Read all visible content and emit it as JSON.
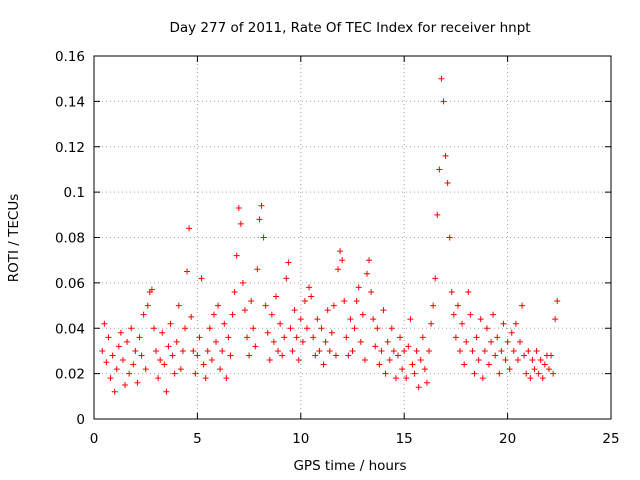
{
  "chart_data": {
    "type": "scatter",
    "title": "Day 277 of 2011, Rate Of TEC Index for receiver hnpt",
    "xlabel": "GPS time / hours",
    "ylabel": "ROTI / TECUs",
    "xlim": [
      0,
      25
    ],
    "ylim": [
      0,
      0.16
    ],
    "xticks": [
      "0",
      "5",
      "10",
      "15",
      "20",
      "25"
    ],
    "yticks": [
      "0",
      "0.02",
      "0.04",
      "0.06",
      "0.08",
      "0.1",
      "0.12",
      "0.14",
      "0.16"
    ],
    "grid": true,
    "marker": "plus",
    "color": "#ff0000",
    "series": [
      {
        "points": [
          [
            0.4,
            0.03
          ],
          [
            0.5,
            0.042
          ],
          [
            0.6,
            0.025
          ],
          [
            0.7,
            0.036
          ],
          [
            0.8,
            0.018
          ],
          [
            0.9,
            0.028
          ],
          [
            1.0,
            0.012
          ],
          [
            1.1,
            0.022
          ],
          [
            1.2,
            0.032
          ],
          [
            1.3,
            0.038
          ],
          [
            1.4,
            0.026
          ],
          [
            1.5,
            0.015
          ],
          [
            1.6,
            0.034
          ],
          [
            1.7,
            0.02
          ],
          [
            1.8,
            0.04
          ],
          [
            1.9,
            0.024
          ],
          [
            2.0,
            0.03
          ],
          [
            2.1,
            0.016
          ],
          [
            2.2,
            0.036
          ],
          [
            2.3,
            0.028
          ],
          [
            2.4,
            0.046
          ],
          [
            2.5,
            0.022
          ],
          [
            2.6,
            0.05
          ],
          [
            2.7,
            0.056
          ],
          [
            2.8,
            0.057
          ],
          [
            2.9,
            0.04
          ],
          [
            3.0,
            0.03
          ],
          [
            3.1,
            0.018
          ],
          [
            3.2,
            0.026
          ],
          [
            3.3,
            0.038
          ],
          [
            3.4,
            0.024
          ],
          [
            3.5,
            0.012
          ],
          [
            3.6,
            0.032
          ],
          [
            3.7,
            0.042
          ],
          [
            3.8,
            0.028
          ],
          [
            3.9,
            0.02
          ],
          [
            4.0,
            0.034
          ],
          [
            4.1,
            0.05
          ],
          [
            4.2,
            0.022
          ],
          [
            4.3,
            0.03
          ],
          [
            4.4,
            0.04
          ],
          [
            4.5,
            0.065
          ],
          [
            4.6,
            0.084
          ],
          [
            4.7,
            0.045
          ],
          [
            4.8,
            0.03
          ],
          [
            4.9,
            0.02
          ],
          [
            5.0,
            0.028
          ],
          [
            5.1,
            0.036
          ],
          [
            5.2,
            0.062
          ],
          [
            5.3,
            0.024
          ],
          [
            5.4,
            0.018
          ],
          [
            5.5,
            0.03
          ],
          [
            5.6,
            0.04
          ],
          [
            5.7,
            0.026
          ],
          [
            5.8,
            0.046
          ],
          [
            5.9,
            0.034
          ],
          [
            6.0,
            0.05
          ],
          [
            6.1,
            0.022
          ],
          [
            6.2,
            0.03
          ],
          [
            6.3,
            0.042
          ],
          [
            6.4,
            0.018
          ],
          [
            6.5,
            0.036
          ],
          [
            6.6,
            0.028
          ],
          [
            6.7,
            0.046
          ],
          [
            6.8,
            0.056
          ],
          [
            6.9,
            0.072
          ],
          [
            7.0,
            0.093
          ],
          [
            7.1,
            0.086
          ],
          [
            7.2,
            0.06
          ],
          [
            7.3,
            0.048
          ],
          [
            7.4,
            0.036
          ],
          [
            7.5,
            0.028
          ],
          [
            7.6,
            0.052
          ],
          [
            7.7,
            0.04
          ],
          [
            7.8,
            0.032
          ],
          [
            7.9,
            0.066
          ],
          [
            8.0,
            0.088
          ],
          [
            8.1,
            0.094
          ],
          [
            8.2,
            0.08
          ],
          [
            8.3,
            0.05
          ],
          [
            8.4,
            0.038
          ],
          [
            8.5,
            0.026
          ],
          [
            8.6,
            0.046
          ],
          [
            8.7,
            0.034
          ],
          [
            8.8,
            0.054
          ],
          [
            8.9,
            0.03
          ],
          [
            9.0,
            0.042
          ],
          [
            9.1,
            0.028
          ],
          [
            9.2,
            0.036
          ],
          [
            9.3,
            0.062
          ],
          [
            9.4,
            0.069
          ],
          [
            9.5,
            0.04
          ],
          [
            9.6,
            0.03
          ],
          [
            9.7,
            0.048
          ],
          [
            9.8,
            0.036
          ],
          [
            9.9,
            0.026
          ],
          [
            10.0,
            0.044
          ],
          [
            10.1,
            0.034
          ],
          [
            10.2,
            0.052
          ],
          [
            10.3,
            0.04
          ],
          [
            10.4,
            0.058
          ],
          [
            10.5,
            0.054
          ],
          [
            10.6,
            0.036
          ],
          [
            10.7,
            0.028
          ],
          [
            10.8,
            0.044
          ],
          [
            10.9,
            0.03
          ],
          [
            11.0,
            0.04
          ],
          [
            11.1,
            0.024
          ],
          [
            11.2,
            0.034
          ],
          [
            11.3,
            0.048
          ],
          [
            11.4,
            0.03
          ],
          [
            11.5,
            0.038
          ],
          [
            11.6,
            0.05
          ],
          [
            11.7,
            0.028
          ],
          [
            11.8,
            0.066
          ],
          [
            11.9,
            0.074
          ],
          [
            12.0,
            0.07
          ],
          [
            12.1,
            0.052
          ],
          [
            12.2,
            0.036
          ],
          [
            12.3,
            0.028
          ],
          [
            12.4,
            0.044
          ],
          [
            12.5,
            0.03
          ],
          [
            12.6,
            0.04
          ],
          [
            12.7,
            0.052
          ],
          [
            12.8,
            0.058
          ],
          [
            12.9,
            0.034
          ],
          [
            13.0,
            0.046
          ],
          [
            13.1,
            0.026
          ],
          [
            13.2,
            0.064
          ],
          [
            13.3,
            0.07
          ],
          [
            13.4,
            0.056
          ],
          [
            13.5,
            0.044
          ],
          [
            13.6,
            0.032
          ],
          [
            13.7,
            0.04
          ],
          [
            13.8,
            0.024
          ],
          [
            13.9,
            0.03
          ],
          [
            14.0,
            0.048
          ],
          [
            14.1,
            0.02
          ],
          [
            14.2,
            0.034
          ],
          [
            14.3,
            0.026
          ],
          [
            14.4,
            0.04
          ],
          [
            14.5,
            0.03
          ],
          [
            14.6,
            0.018
          ],
          [
            14.7,
            0.028
          ],
          [
            14.8,
            0.036
          ],
          [
            14.9,
            0.022
          ],
          [
            15.0,
            0.03
          ],
          [
            15.1,
            0.018
          ],
          [
            15.2,
            0.032
          ],
          [
            15.3,
            0.044
          ],
          [
            15.4,
            0.024
          ],
          [
            15.5,
            0.02
          ],
          [
            15.6,
            0.03
          ],
          [
            15.7,
            0.014
          ],
          [
            15.8,
            0.026
          ],
          [
            15.9,
            0.036
          ],
          [
            16.0,
            0.022
          ],
          [
            16.1,
            0.016
          ],
          [
            16.2,
            0.03
          ],
          [
            16.3,
            0.042
          ],
          [
            16.4,
            0.05
          ],
          [
            16.5,
            0.062
          ],
          [
            16.6,
            0.09
          ],
          [
            16.7,
            0.11
          ],
          [
            16.8,
            0.15
          ],
          [
            16.9,
            0.14
          ],
          [
            17.0,
            0.116
          ],
          [
            17.1,
            0.104
          ],
          [
            17.2,
            0.08
          ],
          [
            17.3,
            0.056
          ],
          [
            17.4,
            0.046
          ],
          [
            17.5,
            0.036
          ],
          [
            17.6,
            0.05
          ],
          [
            17.7,
            0.03
          ],
          [
            17.8,
            0.042
          ],
          [
            17.9,
            0.024
          ],
          [
            18.0,
            0.034
          ],
          [
            18.1,
            0.056
          ],
          [
            18.2,
            0.046
          ],
          [
            18.3,
            0.03
          ],
          [
            18.4,
            0.02
          ],
          [
            18.5,
            0.036
          ],
          [
            18.6,
            0.026
          ],
          [
            18.7,
            0.044
          ],
          [
            18.8,
            0.018
          ],
          [
            18.9,
            0.03
          ],
          [
            19.0,
            0.04
          ],
          [
            19.1,
            0.024
          ],
          [
            19.2,
            0.034
          ],
          [
            19.3,
            0.046
          ],
          [
            19.4,
            0.028
          ],
          [
            19.5,
            0.036
          ],
          [
            19.6,
            0.02
          ],
          [
            19.7,
            0.03
          ],
          [
            19.8,
            0.042
          ],
          [
            19.9,
            0.026
          ],
          [
            20.0,
            0.034
          ],
          [
            20.1,
            0.022
          ],
          [
            20.2,
            0.038
          ],
          [
            20.3,
            0.03
          ],
          [
            20.4,
            0.042
          ],
          [
            20.5,
            0.026
          ],
          [
            20.6,
            0.034
          ],
          [
            20.7,
            0.05
          ],
          [
            20.8,
            0.028
          ],
          [
            20.9,
            0.02
          ],
          [
            21.0,
            0.03
          ],
          [
            21.1,
            0.018
          ],
          [
            21.2,
            0.026
          ],
          [
            21.3,
            0.022
          ],
          [
            21.4,
            0.03
          ],
          [
            21.5,
            0.02
          ],
          [
            21.6,
            0.026
          ],
          [
            21.7,
            0.018
          ],
          [
            21.8,
            0.024
          ],
          [
            21.9,
            0.028
          ],
          [
            22.0,
            0.022
          ],
          [
            22.1,
            0.028
          ],
          [
            22.2,
            0.02
          ],
          [
            22.3,
            0.044
          ],
          [
            22.4,
            0.052
          ]
        ]
      }
    ]
  }
}
